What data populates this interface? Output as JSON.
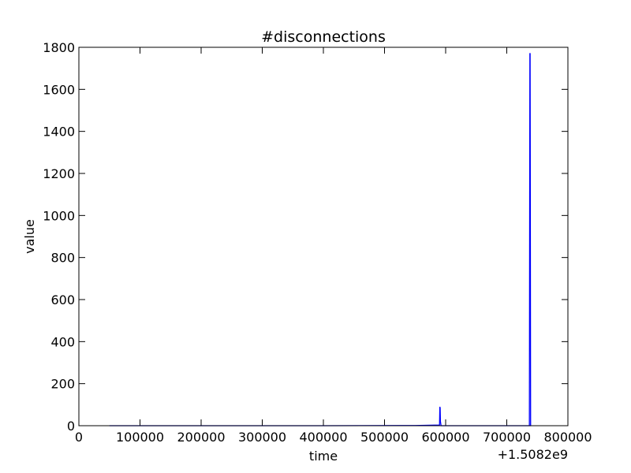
{
  "chart_data": {
    "type": "line",
    "title": "#disconnections",
    "xlabel": "time",
    "ylabel": "value",
    "x_offset_label": "+1.5082e9",
    "xlim": [
      0,
      800000
    ],
    "ylim": [
      0,
      1800
    ],
    "x_ticks": [
      "0",
      "100000",
      "200000",
      "300000",
      "400000",
      "500000",
      "600000",
      "700000",
      "800000"
    ],
    "y_ticks": [
      "0",
      "200",
      "400",
      "600",
      "800",
      "1000",
      "1200",
      "1400",
      "1600",
      "1800"
    ],
    "x_tick_values": [
      0,
      100000,
      200000,
      300000,
      400000,
      500000,
      600000,
      700000,
      800000
    ],
    "y_tick_values": [
      0,
      200,
      400,
      600,
      800,
      1000,
      1200,
      1400,
      1600,
      1800
    ],
    "grid": false,
    "colors": {
      "series": "#0000ff",
      "axes": "#000000",
      "background": "#ffffff"
    },
    "series": [
      {
        "x": [
          50000,
          200000,
          400000,
          550000,
          590000,
          590500,
          591000,
          591500,
          592500,
          650000,
          737000,
          737800,
          738200,
          739000,
          739500
        ],
        "y": [
          0,
          0,
          0,
          1,
          3,
          90,
          85,
          20,
          0,
          0,
          0,
          1770,
          1770,
          0,
          0
        ]
      }
    ]
  }
}
